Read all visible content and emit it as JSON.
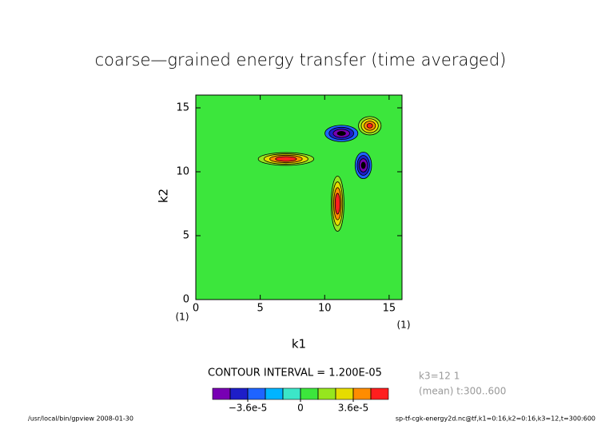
{
  "chart_data": {
    "type": "contour",
    "title": "coarse—grained energy transfer (time averaged)",
    "x_label": "k1",
    "y_label": "k2",
    "x_unit": "(1)",
    "y_unit": "(1)",
    "xlim": [
      0,
      16
    ],
    "ylim": [
      0,
      16
    ],
    "xticks": [
      0,
      5,
      10,
      15
    ],
    "yticks": [
      0,
      5,
      10,
      15
    ],
    "features": [
      {
        "x": 7,
        "y": 11,
        "rx": 2.6,
        "ry": 0.6,
        "value": 7e-05
      },
      {
        "x": 11,
        "y": 7.5,
        "rx": 0.6,
        "ry": 2.6,
        "value": 7e-05
      },
      {
        "x": 11.3,
        "y": 13,
        "rx": 1.6,
        "ry": 0.8,
        "value": -6e-05
      },
      {
        "x": 13,
        "y": 10.5,
        "rx": 0.8,
        "ry": 1.3,
        "value": -6e-05
      },
      {
        "x": 13.5,
        "y": 13.6,
        "rx": 1.1,
        "ry": 0.9,
        "value": 6e-05
      }
    ],
    "contour_interval_text": "CONTOUR INTERVAL = 1.200E-05",
    "annotations": [
      "k3=12 1",
      "(mean) t:300..600"
    ],
    "colorbar": {
      "lim": [
        -6e-05,
        6e-05
      ],
      "boundaries": [
        -4.8e-05,
        -3.6e-05,
        -2.4e-05,
        -1.2e-05,
        0,
        1.2e-05,
        2.4e-05,
        3.6e-05,
        4.8e-05
      ],
      "colors": [
        "#7800b4",
        "#1e1ec8",
        "#1e64ff",
        "#00b4ff",
        "#3ce6c8",
        "#3ce63c",
        "#96e61e",
        "#e6dc00",
        "#ff8c00",
        "#ff1e1e"
      ],
      "ticks": [
        {
          "value": -3.6e-05,
          "label": "−3.6e-5"
        },
        0,
        {
          "value": 3.6e-05,
          "label": "3.6e-5"
        }
      ]
    },
    "footer_left": "/usr/local/bin/gpview   2008-01-30",
    "footer_right": "sp-tf-cgk-energy2d.nc@tf,k1=0:16,k2=0:16,k3=12,t=300:600"
  }
}
